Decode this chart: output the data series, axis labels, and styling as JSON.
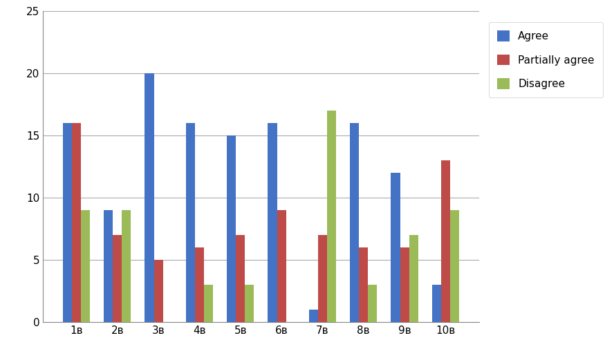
{
  "categories": [
    "1в",
    "2в",
    "3в",
    "4в",
    "5в",
    "6в",
    "7в",
    "8в",
    "9в",
    "10в"
  ],
  "agree": [
    16,
    9,
    20,
    16,
    15,
    16,
    1,
    16,
    12,
    3
  ],
  "partially_agree": [
    16,
    7,
    5,
    6,
    7,
    9,
    7,
    6,
    6,
    13
  ],
  "disagree": [
    9,
    9,
    0,
    3,
    3,
    0,
    17,
    3,
    7,
    9
  ],
  "agree_color": "#4472C4",
  "partially_agree_color": "#BE4B48",
  "disagree_color": "#9BBB59",
  "legend_labels": [
    "Agree",
    "Partially agree",
    "Disagree"
  ],
  "ylim": [
    0,
    25
  ],
  "yticks": [
    0,
    5,
    10,
    15,
    20,
    25
  ],
  "bar_width": 0.22,
  "background_color": "#FFFFFF",
  "plot_background": "#FFFFFF"
}
